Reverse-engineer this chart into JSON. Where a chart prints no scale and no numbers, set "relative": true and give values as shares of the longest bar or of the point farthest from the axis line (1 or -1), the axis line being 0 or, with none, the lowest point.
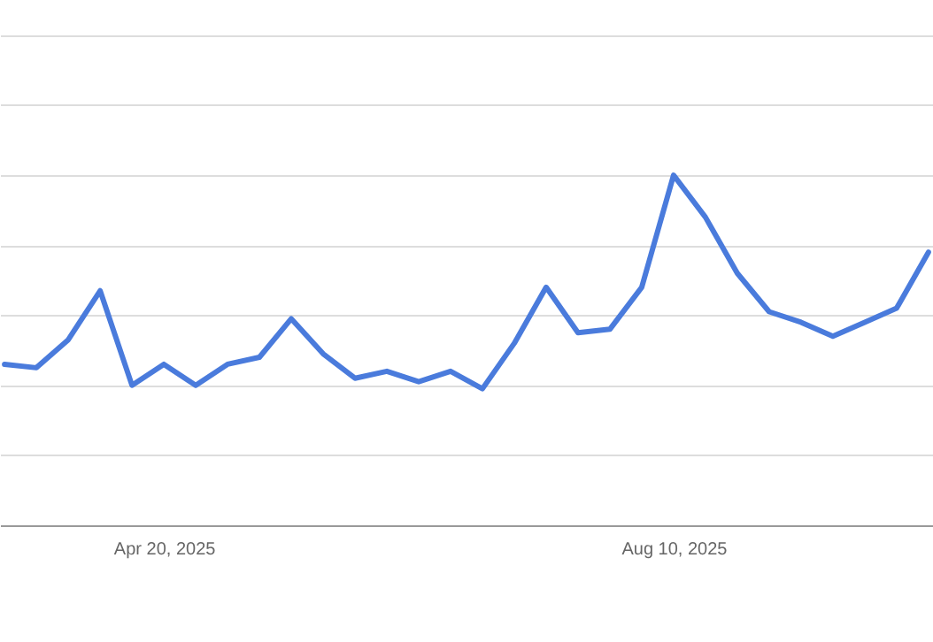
{
  "chart_data": {
    "type": "line",
    "relative": true,
    "grid": "y",
    "marker": "none",
    "line_style": "solid",
    "x": [
      "2025-03-16",
      "2025-03-23",
      "2025-03-30",
      "2025-04-06",
      "2025-04-13",
      "2025-04-20",
      "2025-04-27",
      "2025-05-04",
      "2025-05-11",
      "2025-05-18",
      "2025-05-25",
      "2025-06-01",
      "2025-06-08",
      "2025-06-15",
      "2025-06-22",
      "2025-06-29",
      "2025-07-06",
      "2025-07-13",
      "2025-07-20",
      "2025-07-27",
      "2025-08-03",
      "2025-08-10",
      "2025-08-17",
      "2025-08-24",
      "2025-08-31",
      "2025-09-07",
      "2025-09-14",
      "2025-09-21",
      "2025-09-28",
      "2025-10-05"
    ],
    "xlim": [
      "2025-03-15",
      "2025-10-06"
    ],
    "xticks": [
      {
        "value": "2025-04-20",
        "label": "Apr 20, 2025"
      },
      {
        "value": "2025-08-10",
        "label": "Aug 10, 2025"
      }
    ],
    "series": [
      {
        "color": "#4a7bdc",
        "values": [
          0.46,
          0.45,
          0.53,
          0.67,
          0.4,
          0.46,
          0.4,
          0.46,
          0.48,
          0.59,
          0.49,
          0.42,
          0.44,
          0.41,
          0.44,
          0.39,
          0.52,
          0.68,
          0.55,
          0.56,
          0.68,
          1,
          0.88,
          0.72,
          0.61,
          0.58,
          0.54,
          0.58,
          0.62,
          0.78
        ]
      }
    ]
  }
}
